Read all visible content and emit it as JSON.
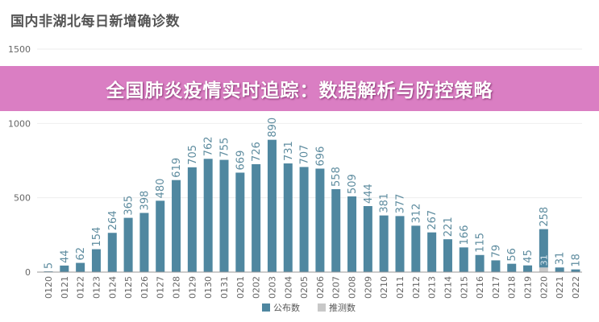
{
  "chart_data": {
    "type": "bar",
    "title": "国内非湖北每日新增确诊数",
    "categories": [
      "0120",
      "0121",
      "0122",
      "0123",
      "0124",
      "0125",
      "0126",
      "0127",
      "0128",
      "0129",
      "0130",
      "0131",
      "0201",
      "0202",
      "0203",
      "0204",
      "0205",
      "0206",
      "0207",
      "0208",
      "0209",
      "0210",
      "0211",
      "0212",
      "0213",
      "0214",
      "0215",
      "0216",
      "0217",
      "0218",
      "0219",
      "0220",
      "0221",
      "0222"
    ],
    "series": [
      {
        "name": "公布数",
        "color": "#4f87a0",
        "values": [
          5,
          44,
          62,
          154,
          264,
          365,
          398,
          480,
          619,
          705,
          762,
          755,
          669,
          726,
          890,
          731,
          707,
          696,
          558,
          509,
          444,
          381,
          377,
          312,
          267,
          221,
          166,
          115,
          79,
          56,
          45,
          258,
          31,
          18
        ]
      },
      {
        "name": "推测数",
        "color": "#c8c8c8",
        "values": [
          null,
          null,
          null,
          null,
          null,
          null,
          null,
          null,
          null,
          null,
          null,
          null,
          null,
          null,
          null,
          null,
          null,
          null,
          null,
          null,
          null,
          null,
          null,
          null,
          null,
          null,
          null,
          null,
          null,
          null,
          null,
          31,
          null,
          null
        ]
      }
    ],
    "ylim": [
      0,
      1500
    ],
    "yticks": [
      0,
      500,
      1000,
      1500
    ],
    "grid": true,
    "legend": "bottom"
  },
  "banner": {
    "text": "全国肺炎疫情实时追踪：数据解析与防控策略"
  }
}
